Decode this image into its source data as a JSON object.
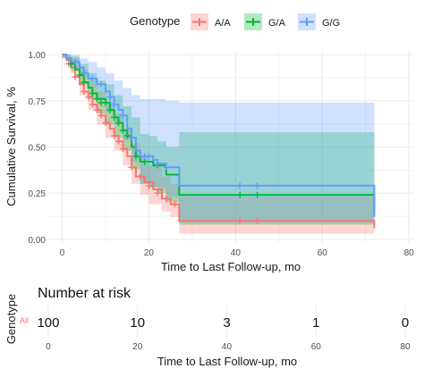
{
  "colors": {
    "aa": "#F8766D",
    "ga": "#00BA38",
    "gg": "#619CFF",
    "risk_label": "#F8766D",
    "grid": "#EBEBEB",
    "text": "#1a1a1a",
    "tick_text": "#4d4d4d"
  },
  "legend": {
    "title": "Genotype",
    "position": "top"
  },
  "chart_data": {
    "type": "line",
    "subtype": "kaplan-meier survival curve with confidence bands and censor marks",
    "xlabel": "Time to Last Follow-up, mo",
    "ylabel": "Cumulative Survival, %",
    "xlim": [
      -3,
      81
    ],
    "ylim": [
      -0.02,
      1.02
    ],
    "xticks": [
      0,
      20,
      40,
      60,
      80
    ],
    "yticks": [
      0.0,
      0.25,
      0.5,
      0.75,
      1.0
    ],
    "xtick_labels": [
      "0",
      "20",
      "40",
      "60",
      "80"
    ],
    "ytick_labels": [
      "0.00",
      "0.25",
      "0.50",
      "0.75",
      "1.00"
    ],
    "grid": true,
    "series": [
      {
        "name": "A/A",
        "color_key": "aa",
        "step": [
          [
            0,
            1.0
          ],
          [
            1,
            0.97
          ],
          [
            2,
            0.93
          ],
          [
            3,
            0.88
          ],
          [
            4,
            0.84
          ],
          [
            5,
            0.8
          ],
          [
            6,
            0.77
          ],
          [
            7,
            0.73
          ],
          [
            8,
            0.7
          ],
          [
            9,
            0.67
          ],
          [
            10,
            0.63
          ],
          [
            11,
            0.6
          ],
          [
            12,
            0.56
          ],
          [
            13,
            0.53
          ],
          [
            14,
            0.49
          ],
          [
            15,
            0.45
          ],
          [
            16,
            0.39
          ],
          [
            17,
            0.34
          ],
          [
            19,
            0.31
          ],
          [
            21,
            0.27
          ],
          [
            23,
            0.22
          ],
          [
            25,
            0.19
          ],
          [
            27,
            0.1
          ],
          [
            72,
            0.1
          ],
          [
            72,
            0.06
          ]
        ],
        "ci_lower": [
          [
            0,
            0.98
          ],
          [
            2,
            0.9
          ],
          [
            4,
            0.78
          ],
          [
            6,
            0.7
          ],
          [
            8,
            0.62
          ],
          [
            10,
            0.55
          ],
          [
            12,
            0.48
          ],
          [
            14,
            0.4
          ],
          [
            16,
            0.3
          ],
          [
            18,
            0.24
          ],
          [
            20,
            0.19
          ],
          [
            23,
            0.15
          ],
          [
            25,
            0.12
          ],
          [
            27,
            0.03
          ],
          [
            72,
            0.03
          ]
        ],
        "ci_upper": [
          [
            0,
            1.0
          ],
          [
            2,
            0.98
          ],
          [
            4,
            0.92
          ],
          [
            6,
            0.86
          ],
          [
            8,
            0.8
          ],
          [
            10,
            0.74
          ],
          [
            12,
            0.68
          ],
          [
            14,
            0.6
          ],
          [
            16,
            0.52
          ],
          [
            18,
            0.45
          ],
          [
            20,
            0.4
          ],
          [
            23,
            0.34
          ],
          [
            25,
            0.3
          ],
          [
            27,
            0.23
          ],
          [
            72,
            0.23
          ]
        ],
        "censors": [
          [
            1.5,
            0.95
          ],
          [
            3,
            0.88
          ],
          [
            5,
            0.8
          ],
          [
            6,
            0.77
          ],
          [
            7,
            0.73
          ],
          [
            8,
            0.7
          ],
          [
            9,
            0.67
          ],
          [
            10,
            0.63
          ],
          [
            12,
            0.56
          ],
          [
            13,
            0.53
          ],
          [
            14,
            0.49
          ],
          [
            16,
            0.39
          ],
          [
            18,
            0.34
          ],
          [
            20,
            0.29
          ],
          [
            22,
            0.25
          ],
          [
            24,
            0.22
          ],
          [
            26,
            0.19
          ],
          [
            41,
            0.1
          ],
          [
            45,
            0.1
          ]
        ]
      },
      {
        "name": "G/A",
        "color_key": "ga",
        "step": [
          [
            0,
            1.0
          ],
          [
            1,
            0.98
          ],
          [
            2,
            0.95
          ],
          [
            3,
            0.92
          ],
          [
            4,
            0.89
          ],
          [
            5,
            0.85
          ],
          [
            6,
            0.82
          ],
          [
            7,
            0.79
          ],
          [
            8,
            0.76
          ],
          [
            10,
            0.74
          ],
          [
            11,
            0.7
          ],
          [
            12,
            0.66
          ],
          [
            13,
            0.63
          ],
          [
            14,
            0.59
          ],
          [
            15,
            0.56
          ],
          [
            16,
            0.5
          ],
          [
            17,
            0.45
          ],
          [
            18,
            0.42
          ],
          [
            20,
            0.42
          ],
          [
            21,
            0.4
          ],
          [
            24,
            0.35
          ],
          [
            27,
            0.24
          ],
          [
            72,
            0.24
          ],
          [
            72,
            0.14
          ]
        ],
        "ci_lower": [
          [
            0,
            0.98
          ],
          [
            2,
            0.91
          ],
          [
            4,
            0.84
          ],
          [
            6,
            0.76
          ],
          [
            8,
            0.68
          ],
          [
            10,
            0.62
          ],
          [
            12,
            0.55
          ],
          [
            14,
            0.48
          ],
          [
            16,
            0.38
          ],
          [
            18,
            0.3
          ],
          [
            20,
            0.28
          ],
          [
            22,
            0.25
          ],
          [
            24,
            0.2
          ],
          [
            27,
            0.08
          ],
          [
            72,
            0.08
          ]
        ],
        "ci_upper": [
          [
            0,
            1.0
          ],
          [
            2,
            0.99
          ],
          [
            4,
            0.95
          ],
          [
            6,
            0.9
          ],
          [
            8,
            0.86
          ],
          [
            10,
            0.84
          ],
          [
            12,
            0.78
          ],
          [
            14,
            0.72
          ],
          [
            16,
            0.66
          ],
          [
            18,
            0.57
          ],
          [
            20,
            0.56
          ],
          [
            22,
            0.53
          ],
          [
            24,
            0.5
          ],
          [
            27,
            0.58
          ],
          [
            72,
            0.58
          ]
        ],
        "censors": [
          [
            2,
            0.95
          ],
          [
            4,
            0.89
          ],
          [
            5,
            0.85
          ],
          [
            7,
            0.79
          ],
          [
            8,
            0.76
          ],
          [
            9,
            0.74
          ],
          [
            10,
            0.74
          ],
          [
            11,
            0.7
          ],
          [
            12,
            0.66
          ],
          [
            13,
            0.63
          ],
          [
            14,
            0.59
          ],
          [
            15,
            0.56
          ],
          [
            17,
            0.45
          ],
          [
            19,
            0.42
          ],
          [
            22,
            0.4
          ],
          [
            41,
            0.24
          ],
          [
            45,
            0.24
          ]
        ]
      },
      {
        "name": "G/G",
        "color_key": "gg",
        "step": [
          [
            0,
            1.0
          ],
          [
            1,
            0.98
          ],
          [
            2,
            0.96
          ],
          [
            4,
            0.93
          ],
          [
            5,
            0.9
          ],
          [
            6,
            0.87
          ],
          [
            8,
            0.84
          ],
          [
            10,
            0.8
          ],
          [
            11,
            0.77
          ],
          [
            12,
            0.73
          ],
          [
            13,
            0.7
          ],
          [
            14,
            0.67
          ],
          [
            15,
            0.6
          ],
          [
            16,
            0.55
          ],
          [
            17,
            0.48
          ],
          [
            18,
            0.45
          ],
          [
            21,
            0.43
          ],
          [
            22,
            0.41
          ],
          [
            24,
            0.39
          ],
          [
            27,
            0.29
          ],
          [
            72,
            0.29
          ],
          [
            72,
            0.12
          ]
        ],
        "ci_lower": [
          [
            0,
            0.98
          ],
          [
            2,
            0.93
          ],
          [
            4,
            0.88
          ],
          [
            6,
            0.82
          ],
          [
            8,
            0.76
          ],
          [
            10,
            0.69
          ],
          [
            12,
            0.62
          ],
          [
            14,
            0.54
          ],
          [
            16,
            0.42
          ],
          [
            18,
            0.3
          ],
          [
            20,
            0.28
          ],
          [
            24,
            0.23
          ],
          [
            27,
            0.09
          ],
          [
            72,
            0.09
          ]
        ],
        "ci_upper": [
          [
            0,
            1.0
          ],
          [
            2,
            1.0
          ],
          [
            4,
            0.98
          ],
          [
            6,
            0.96
          ],
          [
            8,
            0.93
          ],
          [
            10,
            0.9
          ],
          [
            12,
            0.86
          ],
          [
            14,
            0.82
          ],
          [
            16,
            0.78
          ],
          [
            18,
            0.76
          ],
          [
            20,
            0.76
          ],
          [
            24,
            0.75
          ],
          [
            27,
            0.74
          ],
          [
            72,
            0.74
          ]
        ],
        "censors": [
          [
            3,
            0.96
          ],
          [
            5,
            0.9
          ],
          [
            7,
            0.87
          ],
          [
            9,
            0.84
          ],
          [
            11,
            0.77
          ],
          [
            12,
            0.73
          ],
          [
            14,
            0.67
          ],
          [
            16,
            0.55
          ],
          [
            19,
            0.45
          ],
          [
            20,
            0.45
          ],
          [
            22,
            0.41
          ],
          [
            24,
            0.39
          ],
          [
            41,
            0.29
          ],
          [
            45,
            0.29
          ]
        ]
      }
    ]
  },
  "risk_table": {
    "title": "Number at risk",
    "ylabel": "Genotype",
    "xlabel": "Time to Last Follow-up, mo",
    "row_label": "All",
    "times": [
      0,
      20,
      40,
      60,
      80
    ],
    "time_labels": [
      "0",
      "20",
      "40",
      "60",
      "80"
    ],
    "counts": [
      "100",
      "10",
      "3",
      "1",
      "0"
    ],
    "xlim": [
      -3,
      81
    ]
  }
}
